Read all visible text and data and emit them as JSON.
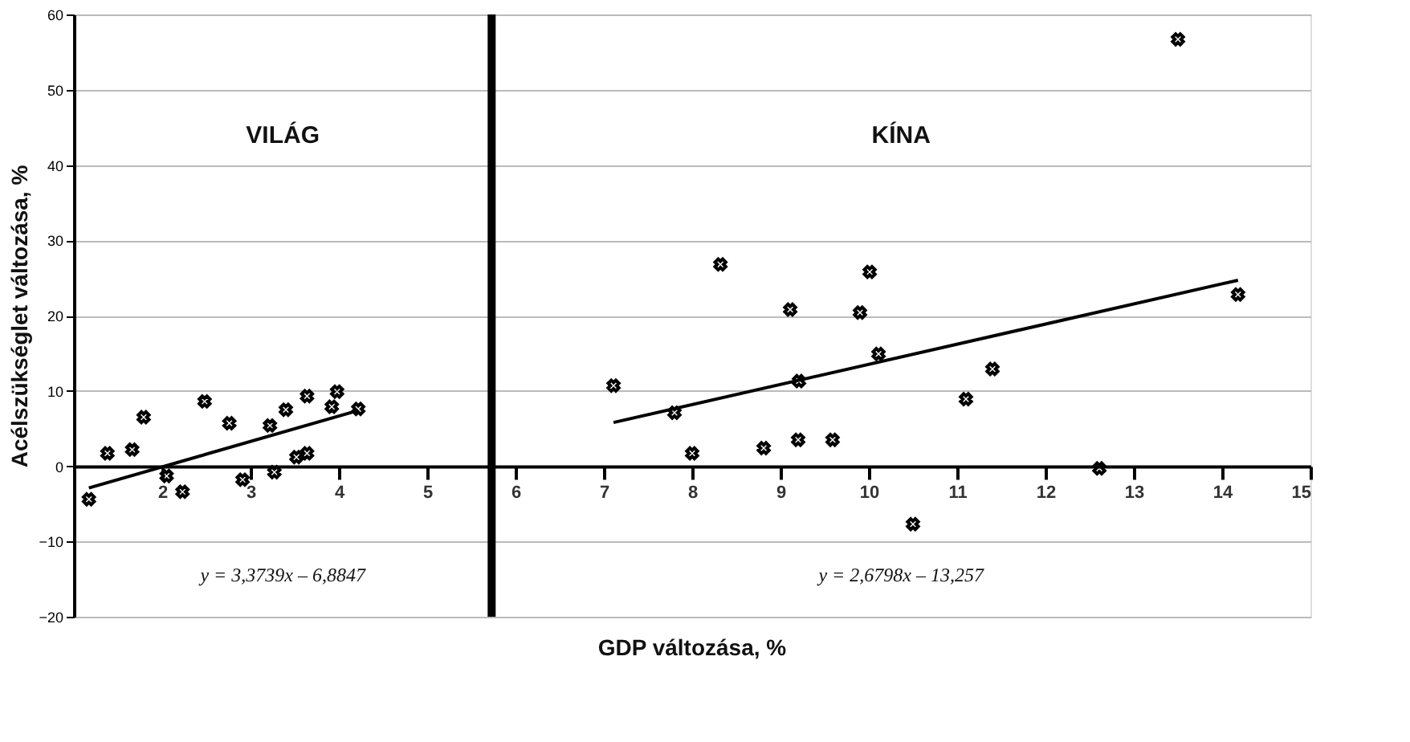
{
  "chart_data": {
    "type": "scatter",
    "xlabel": "GDP változása, %",
    "ylabel": "Acélszükséglet változása, %",
    "annotations": [
      "VILÁG",
      "KÍNA",
      "y = 3,3739x – 6,8847",
      "y = 2,6798x – 13,257"
    ],
    "xlim": [
      1,
      15
    ],
    "xticks": [
      2,
      3,
      4,
      5,
      6,
      7,
      8,
      9,
      10,
      11,
      12,
      13,
      14,
      15
    ],
    "ylim": [
      -20,
      60
    ],
    "yticks": [
      -20,
      -10,
      0,
      10,
      20,
      30,
      40,
      50,
      60
    ],
    "grid": "y",
    "marker": "cross",
    "ref_lines": [
      {
        "axis": "x",
        "value": 5.73,
        "color": "#000000"
      }
    ],
    "series": [
      {
        "color": "#000000",
        "x": [
          1.17,
          1.38,
          1.66,
          1.79,
          2.05,
          2.23,
          2.48,
          2.76,
          2.91,
          3.22,
          3.27,
          3.4,
          3.52,
          3.64,
          3.64,
          3.92,
          3.98,
          4.22
        ],
        "values": [
          -4.4,
          1.7,
          2.2,
          6.5,
          -1.3,
          -3.4,
          8.6,
          5.7,
          -1.8,
          5.4,
          -0.8,
          7.5,
          1.2,
          1.7,
          9.3,
          7.9,
          9.9,
          7.6
        ]
      },
      {
        "color": "#000000",
        "x": [
          13.5,
          8.32,
          10.01,
          9.11,
          9.9,
          14.18,
          10.11,
          11.4,
          7.11,
          11.1,
          7.8,
          8.0,
          8.81,
          9.2,
          9.59,
          9.21,
          12.61,
          10.5
        ],
        "values": [
          56.7,
          26.8,
          25.8,
          20.8,
          20.4,
          22.8,
          14.9,
          12.9,
          10.7,
          8.9,
          7.1,
          1.7,
          2.4,
          3.5,
          3.5,
          11.3,
          -0.3,
          -7.7
        ]
      },
      {
        "type": "line",
        "color": "#000000",
        "x": [
          1.17,
          4.22
        ],
        "values": [
          -2.9,
          7.4
        ],
        "marker": "none",
        "line_style": "solid"
      },
      {
        "type": "line",
        "color": "#000000",
        "x": [
          7.11,
          14.18
        ],
        "values": [
          5.8,
          24.7
        ],
        "marker": "none",
        "line_style": "solid"
      }
    ]
  }
}
